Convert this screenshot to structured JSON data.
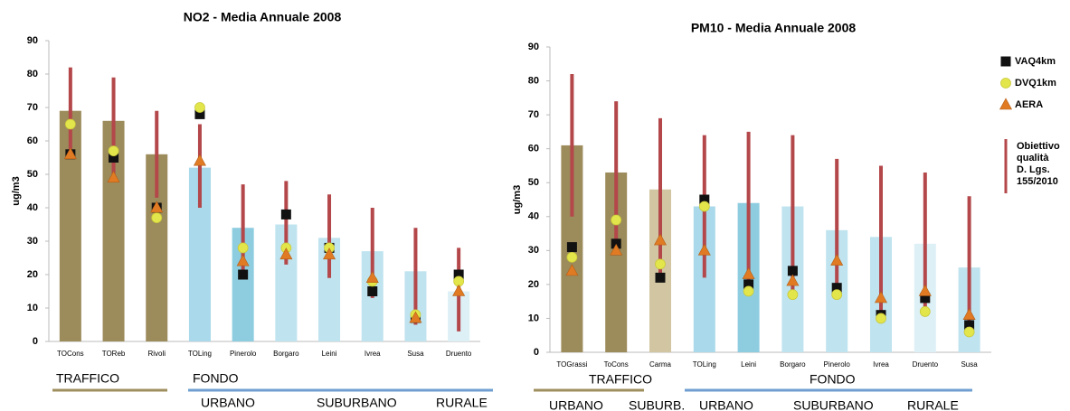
{
  "chart_data": [
    {
      "type": "bar",
      "title": "NO2 - Media Annuale 2008",
      "y_label": "ug/m3",
      "ylim": [
        0,
        90
      ],
      "yticks": [
        0,
        10,
        20,
        30,
        40,
        50,
        60,
        70,
        80,
        90
      ],
      "categories": [
        "TOCons",
        "TOReb",
        "Rivoli",
        "TOLing",
        "Pinerolo",
        "Borgaro",
        "Leini",
        "Ivrea",
        "Susa",
        "Druento"
      ],
      "values": [
        69,
        66,
        56,
        52,
        34,
        35,
        31,
        27,
        21,
        15
      ],
      "bar_colors": [
        "#9c8b5b",
        "#9c8b5b",
        "#9c8b5b",
        "#a9d9ea",
        "#8ecde0",
        "#bfe3ef",
        "#bfe3ef",
        "#bfe3ef",
        "#bfe3ef",
        "#dcf0f6"
      ],
      "range": {
        "color": "#b3474a",
        "low": [
          55,
          49,
          43,
          40,
          19,
          23,
          19,
          13,
          5,
          3
        ],
        "high": [
          82,
          79,
          69,
          65,
          47,
          48,
          44,
          40,
          34,
          28
        ]
      },
      "series": [
        {
          "marker": "square",
          "color": "#111111",
          "values": [
            56,
            55,
            40,
            68,
            20,
            38,
            28,
            15,
            7,
            20
          ]
        },
        {
          "marker": "circle",
          "color": "#e3e64a",
          "values": [
            65,
            57,
            37,
            70,
            28,
            28,
            28,
            18,
            8,
            18
          ]
        },
        {
          "marker": "triangle",
          "color": "#e07b24",
          "values": [
            56,
            49,
            40,
            54,
            24,
            26,
            26,
            19,
            7,
            15
          ]
        }
      ],
      "group_labels": [
        {
          "label": "TRAFFICO",
          "line_color": "#a08f5e"
        },
        {
          "label": "FONDO",
          "line_color": "#6f9fd0"
        },
        {
          "label": "URBANO"
        },
        {
          "label": "SUBURBANO"
        },
        {
          "label": "RURALE"
        }
      ]
    },
    {
      "type": "bar",
      "title": "PM10 - Media Annuale 2008",
      "y_label": "ug/m3",
      "ylim": [
        0,
        90
      ],
      "yticks": [
        0,
        10,
        20,
        30,
        40,
        50,
        60,
        70,
        80,
        90
      ],
      "categories": [
        "TOGrassi",
        "ToCons",
        "Carma",
        "TOLing",
        "Leini",
        "Borgaro",
        "Pinerolo",
        "Ivrea",
        "Druento",
        "Susa"
      ],
      "values": [
        61,
        53,
        48,
        43,
        44,
        43,
        36,
        34,
        32,
        25
      ],
      "bar_colors": [
        "#9c8b5b",
        "#9c8b5b",
        "#d2c6a2",
        "#a9d9ea",
        "#8ecde0",
        "#bfe3ef",
        "#bfe3ef",
        "#bfe3ef",
        "#dcf0f6",
        "#bfe3ef"
      ],
      "range": {
        "name": [
          "Obiettivo",
          "qualità",
          "D. Lgs.",
          "155/2010"
        ],
        "color": "#b3474a",
        "low": [
          40,
          30,
          22,
          22,
          18,
          17,
          16,
          10,
          12,
          6
        ],
        "high": [
          82,
          74,
          69,
          64,
          65,
          64,
          57,
          55,
          53,
          46
        ]
      },
      "series": [
        {
          "name": "VAQ4km",
          "marker": "square",
          "color": "#111111",
          "values": [
            31,
            32,
            22,
            45,
            20,
            24,
            19,
            11,
            16,
            8
          ]
        },
        {
          "name": "DVQ1km",
          "marker": "circle",
          "color": "#e3e64a",
          "values": [
            28,
            39,
            26,
            43,
            18,
            17,
            17,
            10,
            12,
            6
          ]
        },
        {
          "name": "AERA",
          "marker": "triangle",
          "color": "#e07b24",
          "values": [
            24,
            30,
            33,
            30,
            23,
            21,
            27,
            16,
            18,
            11
          ]
        }
      ],
      "group_labels": [
        {
          "label": "TRAFFICO",
          "line_color": "#a08f5e"
        },
        {
          "label": "FONDO",
          "line_color": "#6f9fd0"
        },
        {
          "label": "URBANO"
        },
        {
          "label": "SUBURB."
        },
        {
          "label": "URBANO"
        },
        {
          "label": "SUBURBANO"
        },
        {
          "label": "RURALE"
        }
      ]
    }
  ]
}
